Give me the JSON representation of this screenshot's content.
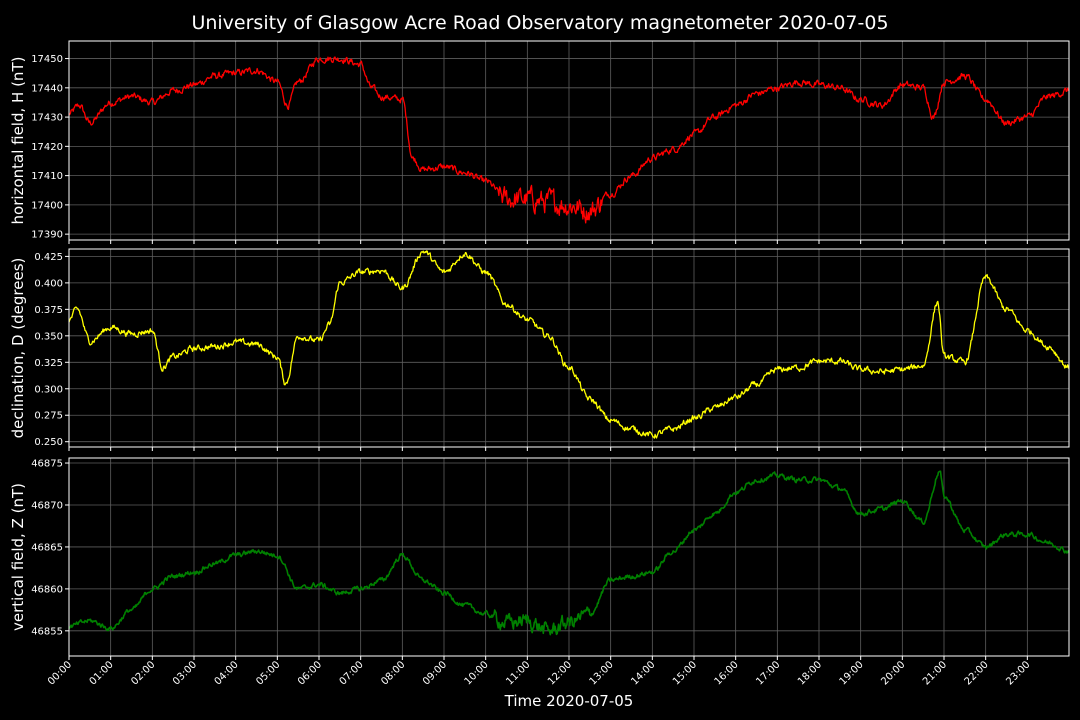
{
  "chart_data": {
    "title": "University of Glasgow Acre Road Observatory magnetometer 2020-07-05",
    "xlabel": "Time 2020-07-05",
    "type": "line",
    "x_ticks": [
      "00:00",
      "01:00",
      "02:00",
      "03:00",
      "04:00",
      "05:00",
      "06:00",
      "07:00",
      "08:00",
      "09:00",
      "10:00",
      "11:00",
      "12:00",
      "13:00",
      "14:00",
      "15:00",
      "16:00",
      "17:00",
      "18:00",
      "19:00",
      "20:00",
      "21:00",
      "22:00",
      "23:00"
    ],
    "xlim_hours": [
      0,
      24
    ],
    "grid": true,
    "panels": [
      {
        "id": "horizontal",
        "ylabel": "horizontal field, H (nT)",
        "color": "#ff0000",
        "ylim": [
          17388,
          17456
        ],
        "y_ticks": [
          17390,
          17400,
          17410,
          17420,
          17430,
          17440,
          17450
        ],
        "y_tick_labels": [
          "17390",
          "17400",
          "17410",
          "17420",
          "17430",
          "17440",
          "17450"
        ],
        "noise": 1.2,
        "hours": [
          0,
          0.25,
          0.5,
          1,
          1.5,
          2,
          2.5,
          3,
          3.5,
          4,
          4.5,
          5,
          5.25,
          5.5,
          6,
          6.5,
          7,
          7.25,
          7.5,
          8,
          8.25,
          8.5,
          9,
          9.5,
          10,
          10.5,
          11,
          11.5,
          12,
          12.5,
          13,
          13.5,
          14,
          14.5,
          15,
          15.5,
          16,
          16.5,
          17,
          17.5,
          18,
          18.5,
          19,
          19.5,
          20,
          20.5,
          20.75,
          21,
          21.5,
          22,
          22.5,
          23,
          23.5,
          24
        ],
        "values": [
          17431,
          17434,
          17428,
          17435,
          17437,
          17435,
          17439,
          17441,
          17444,
          17445,
          17446,
          17442,
          17434,
          17442,
          17450,
          17450,
          17448,
          17440,
          17437,
          17436,
          17416,
          17412,
          17413,
          17411,
          17408,
          17402,
          17402,
          17401,
          17400,
          17398,
          17404,
          17410,
          17416,
          17419,
          17424,
          17430,
          17434,
          17438,
          17440,
          17442,
          17441,
          17440,
          17436,
          17434,
          17441,
          17440,
          17430,
          17442,
          17444,
          17436,
          17428,
          17430,
          17437,
          17439
        ]
      },
      {
        "id": "declination",
        "ylabel": "declination, D (degrees)",
        "color": "#ffff00",
        "ylim": [
          0.245,
          0.432
        ],
        "y_ticks": [
          0.25,
          0.275,
          0.3,
          0.325,
          0.35,
          0.375,
          0.4,
          0.425
        ],
        "y_tick_labels": [
          "0.250",
          "0.275",
          "0.300",
          "0.325",
          "0.350",
          "0.375",
          "0.400",
          "0.425"
        ],
        "noise": 0.003,
        "hours": [
          0,
          0.2,
          0.5,
          1,
          1.5,
          2,
          2.25,
          2.5,
          3,
          3.5,
          4,
          4.5,
          5,
          5.2,
          5.5,
          6,
          6.25,
          6.5,
          7,
          7.5,
          8,
          8.5,
          9,
          9.5,
          10,
          10.5,
          11,
          11.5,
          12,
          12.5,
          13,
          13.5,
          14,
          14.5,
          15,
          15.5,
          16,
          16.5,
          17,
          17.5,
          18,
          18.5,
          19,
          19.5,
          20,
          20.5,
          20.85,
          21,
          21.5,
          22,
          22.5,
          23,
          23.5,
          24
        ],
        "values": [
          0.365,
          0.375,
          0.345,
          0.358,
          0.352,
          0.355,
          0.32,
          0.33,
          0.338,
          0.34,
          0.344,
          0.342,
          0.33,
          0.305,
          0.35,
          0.345,
          0.36,
          0.4,
          0.41,
          0.412,
          0.395,
          0.43,
          0.41,
          0.428,
          0.41,
          0.38,
          0.365,
          0.35,
          0.32,
          0.29,
          0.27,
          0.262,
          0.256,
          0.262,
          0.272,
          0.282,
          0.292,
          0.304,
          0.318,
          0.32,
          0.326,
          0.326,
          0.318,
          0.316,
          0.318,
          0.322,
          0.382,
          0.33,
          0.325,
          0.405,
          0.375,
          0.355,
          0.34,
          0.32
        ]
      },
      {
        "id": "vertical",
        "ylabel": "vertical field, Z (nT)",
        "color": "#008000",
        "ylim": [
          46852,
          46875.6
        ],
        "y_ticks": [
          46855,
          46860,
          46865,
          46870,
          46875
        ],
        "y_tick_labels": [
          "46855",
          "46860",
          "46865",
          "46870",
          "46875"
        ],
        "noise": 0.3,
        "hours": [
          0,
          0.5,
          1,
          1.5,
          2,
          2.5,
          3,
          3.5,
          4,
          4.5,
          5,
          5.5,
          6,
          6.5,
          7,
          7.5,
          8,
          8.5,
          9,
          9.5,
          10,
          10.5,
          11,
          11.5,
          12,
          12.5,
          13,
          13.5,
          14,
          14.5,
          15,
          15.5,
          16,
          16.5,
          17,
          17.5,
          18,
          18.5,
          19,
          19.5,
          20,
          20.5,
          20.9,
          21,
          21.5,
          22,
          22.5,
          23,
          23.5,
          24
        ],
        "values": [
          46855.5,
          46856.2,
          46855.3,
          46857.5,
          46860,
          46861.5,
          46862,
          46863,
          46864,
          46864.5,
          46864,
          46860,
          46860.5,
          46859.5,
          46860,
          46861,
          46864,
          46861,
          46859.5,
          46858,
          46857,
          46856,
          46856.2,
          46855,
          46856,
          46857,
          46861,
          46861.5,
          46862,
          46864.5,
          46867,
          46869,
          46871.5,
          46873,
          46873.5,
          46873,
          46873,
          46872,
          46869,
          46869.5,
          46870.5,
          46868,
          46874,
          46871,
          46867,
          46865,
          46866.5,
          46866.5,
          46865.5,
          46864.5
        ]
      }
    ]
  }
}
